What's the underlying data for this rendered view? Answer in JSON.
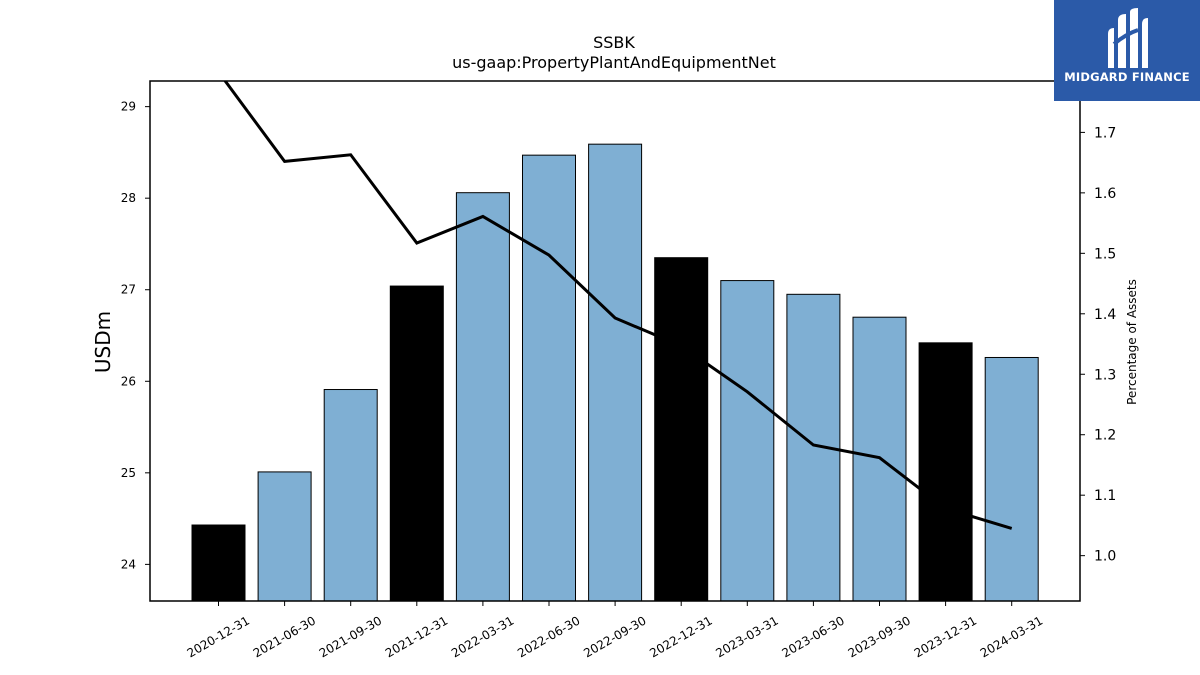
{
  "chart_data": {
    "type": "bar",
    "title": "SSBK",
    "subtitle": "us-gaap:PropertyPlantAndEquipmentNet",
    "ylabel": "USDm",
    "y2label": "Percentage of Assets",
    "ylim": [
      23.6,
      29.28
    ],
    "y2lim": [
      0.925,
      1.785
    ],
    "yticks": [
      24,
      25,
      26,
      27,
      28,
      29
    ],
    "y2ticks": [
      1.0,
      1.1,
      1.2,
      1.3,
      1.4,
      1.5,
      1.6,
      1.7
    ],
    "categories": [
      "2020-12-31",
      "2021-06-30",
      "2021-09-30",
      "2021-12-31",
      "2022-03-31",
      "2022-06-30",
      "2022-09-30",
      "2022-12-31",
      "2023-03-31",
      "2023-06-30",
      "2023-09-30",
      "2023-12-31",
      "2024-03-31"
    ],
    "series": [
      {
        "type": "bar",
        "values": [
          24.43,
          25.01,
          25.91,
          27.04,
          28.06,
          28.47,
          28.59,
          27.35,
          27.1,
          26.95,
          26.7,
          26.42,
          26.26
        ],
        "colors": [
          "#000000",
          "#7fafd3",
          "#7fafd3",
          "#000000",
          "#7fafd3",
          "#7fafd3",
          "#7fafd3",
          "#000000",
          "#7fafd3",
          "#7fafd3",
          "#7fafd3",
          "#000000",
          "#7fafd3"
        ]
      },
      {
        "type": "line",
        "axis": "right",
        "color": "#000000",
        "values": [
          1.8,
          1.652,
          1.663,
          1.517,
          1.561,
          1.497,
          1.393,
          1.347,
          1.271,
          1.183,
          1.162,
          1.078,
          1.045
        ]
      }
    ],
    "grid": false,
    "legend": "none"
  },
  "logo": {
    "text": "MIDGARD FINANCE"
  }
}
